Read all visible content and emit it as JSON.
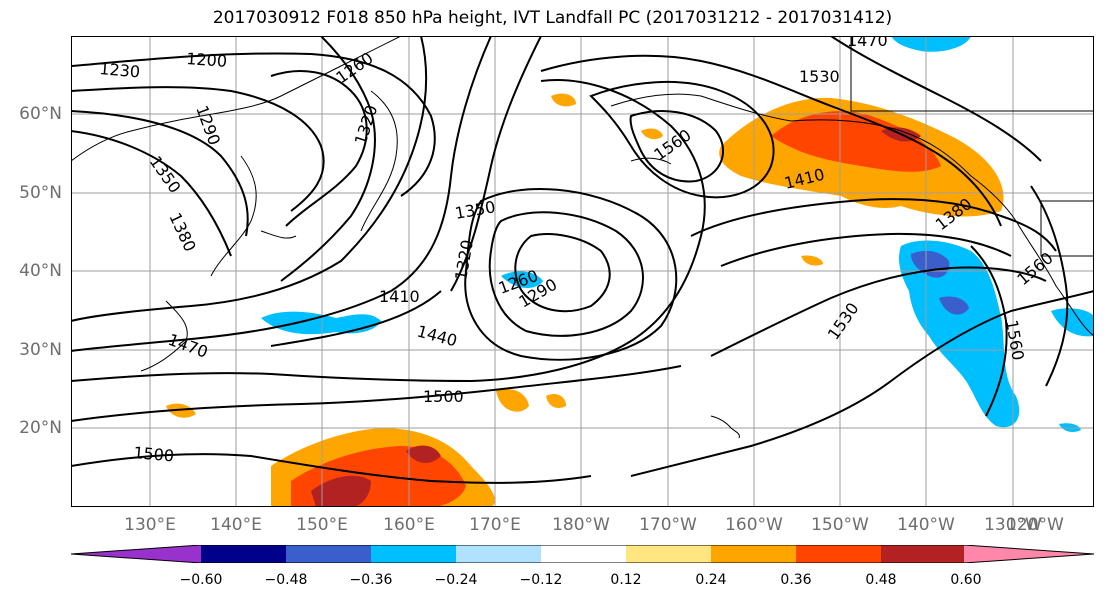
{
  "title": "2017030912 F018 850 hPa height, IVT Landfall PC (2017031212 - 2017031412)",
  "lat_labels": [
    "60°N",
    "50°N",
    "40°N",
    "30°N",
    "20°N"
  ],
  "lon_labels": [
    "130°E",
    "140°E",
    "150°E",
    "160°E",
    "170°E",
    "180°W",
    "170°W",
    "160°W",
    "150°W",
    "140°W",
    "130°W",
    "120°W"
  ],
  "contour_labels": [
    "1230",
    "1200",
    "1260",
    "1290",
    "1320",
    "1350",
    "1380",
    "1470",
    "1530",
    "1560",
    "1410",
    "1380",
    "1350",
    "1320",
    "1260",
    "1290",
    "1410",
    "1440",
    "1470",
    "1500",
    "1500",
    "1530",
    "1560",
    "1560"
  ],
  "colorbar": {
    "ticks": [
      "−0.60",
      "−0.48",
      "−0.36",
      "−0.24",
      "−0.12",
      "0.12",
      "0.24",
      "0.36",
      "0.48",
      "0.60"
    ],
    "colors": [
      "#9932cc",
      "#00008b",
      "#3a5fcd",
      "#00bfff",
      "#b0e2ff",
      "#ffffff",
      "#ffe680",
      "#ffa500",
      "#ff4500",
      "#b22222",
      "#ff88aa"
    ]
  }
}
